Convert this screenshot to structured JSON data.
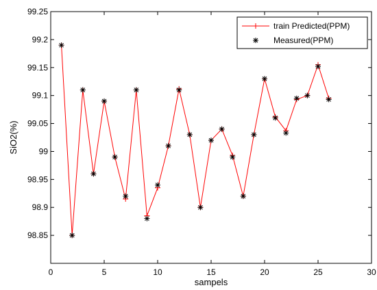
{
  "chart_data": {
    "type": "line",
    "title": "",
    "xlabel": "sampels",
    "ylabel": "SiO2(%)",
    "xlim": [
      0,
      30
    ],
    "ylim": [
      98.8,
      99.25
    ],
    "x_ticks": [
      "0",
      "5",
      "10",
      "15",
      "20",
      "25",
      "30"
    ],
    "y_ticks": [
      "98.85",
      "98.9",
      "98.95",
      "99",
      "99.05",
      "99.1",
      "99.15",
      "99.2",
      "99.25"
    ],
    "grid": false,
    "legend_position": "top-right",
    "x": [
      1,
      2,
      3,
      4,
      5,
      6,
      7,
      8,
      9,
      10,
      11,
      12,
      13,
      14,
      15,
      16,
      17,
      18,
      19,
      20,
      21,
      22,
      23,
      24,
      25,
      26
    ],
    "series": [
      {
        "name": "train Predicted(PPM)",
        "color": "#ff0000",
        "marker": "+",
        "values": [
          99.19,
          98.85,
          99.11,
          98.96,
          99.09,
          98.99,
          98.915,
          99.11,
          98.885,
          98.935,
          99.01,
          99.112,
          99.03,
          98.9,
          99.02,
          99.04,
          98.993,
          98.92,
          99.03,
          99.13,
          99.062,
          99.037,
          99.093,
          99.1,
          99.155,
          99.095
        ]
      },
      {
        "name": "Measured(PPM)",
        "color": "#000000",
        "marker": "*",
        "values": [
          99.19,
          98.85,
          99.11,
          98.96,
          99.09,
          98.99,
          98.92,
          99.11,
          98.88,
          98.94,
          99.01,
          99.11,
          99.03,
          98.9,
          99.02,
          99.04,
          98.99,
          98.92,
          99.03,
          99.13,
          99.06,
          99.033,
          99.095,
          99.1,
          99.152,
          99.093
        ]
      }
    ]
  }
}
